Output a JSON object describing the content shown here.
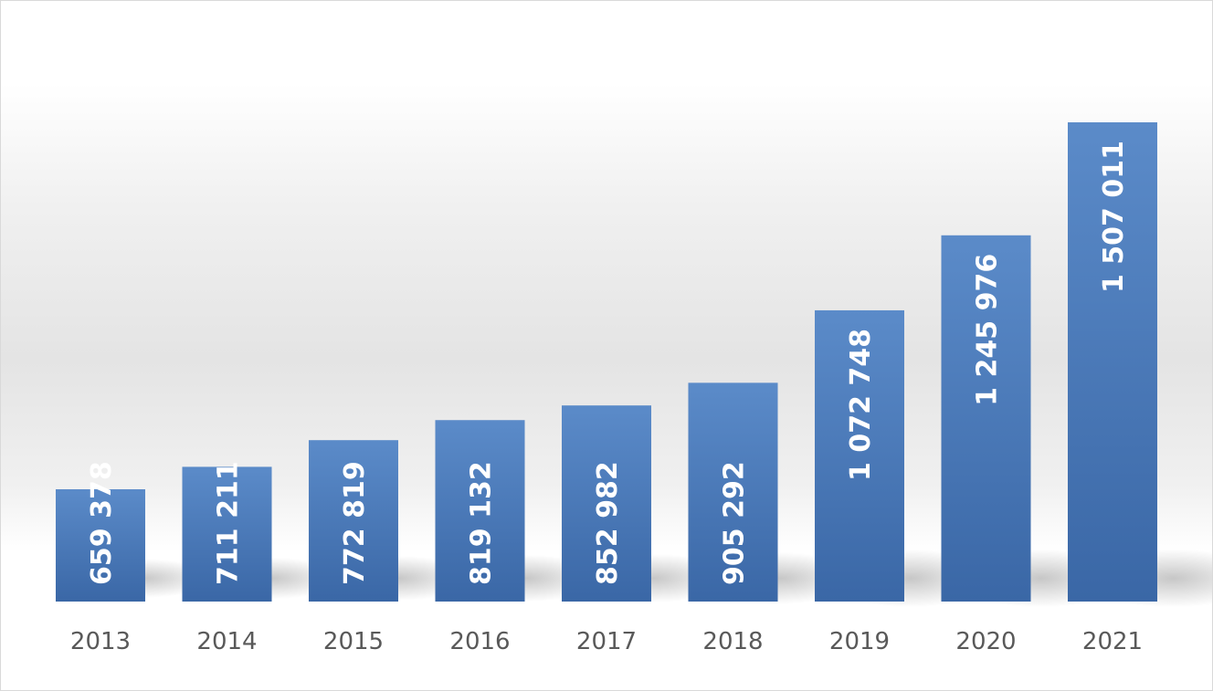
{
  "chart_data": {
    "type": "bar",
    "categories": [
      "2013",
      "2014",
      "2015",
      "2016",
      "2017",
      "2018",
      "2019",
      "2020",
      "2021"
    ],
    "values": [
      659378,
      711211,
      772819,
      819132,
      852982,
      905292,
      1072748,
      1245976,
      1507011
    ],
    "data_labels": [
      "659 378",
      "711 211",
      "772 819",
      "819 132",
      "852 982",
      "905 292",
      "1 072 748",
      "1 245 976",
      "1 507 011"
    ],
    "ylim": [
      400000,
      1550000
    ],
    "grid": false,
    "legend": "none",
    "colors": {
      "bar_top": "#5b8bc9",
      "bar_bottom": "#3a67a6",
      "label_text": "#ffffff",
      "tick_text": "#595959"
    }
  }
}
